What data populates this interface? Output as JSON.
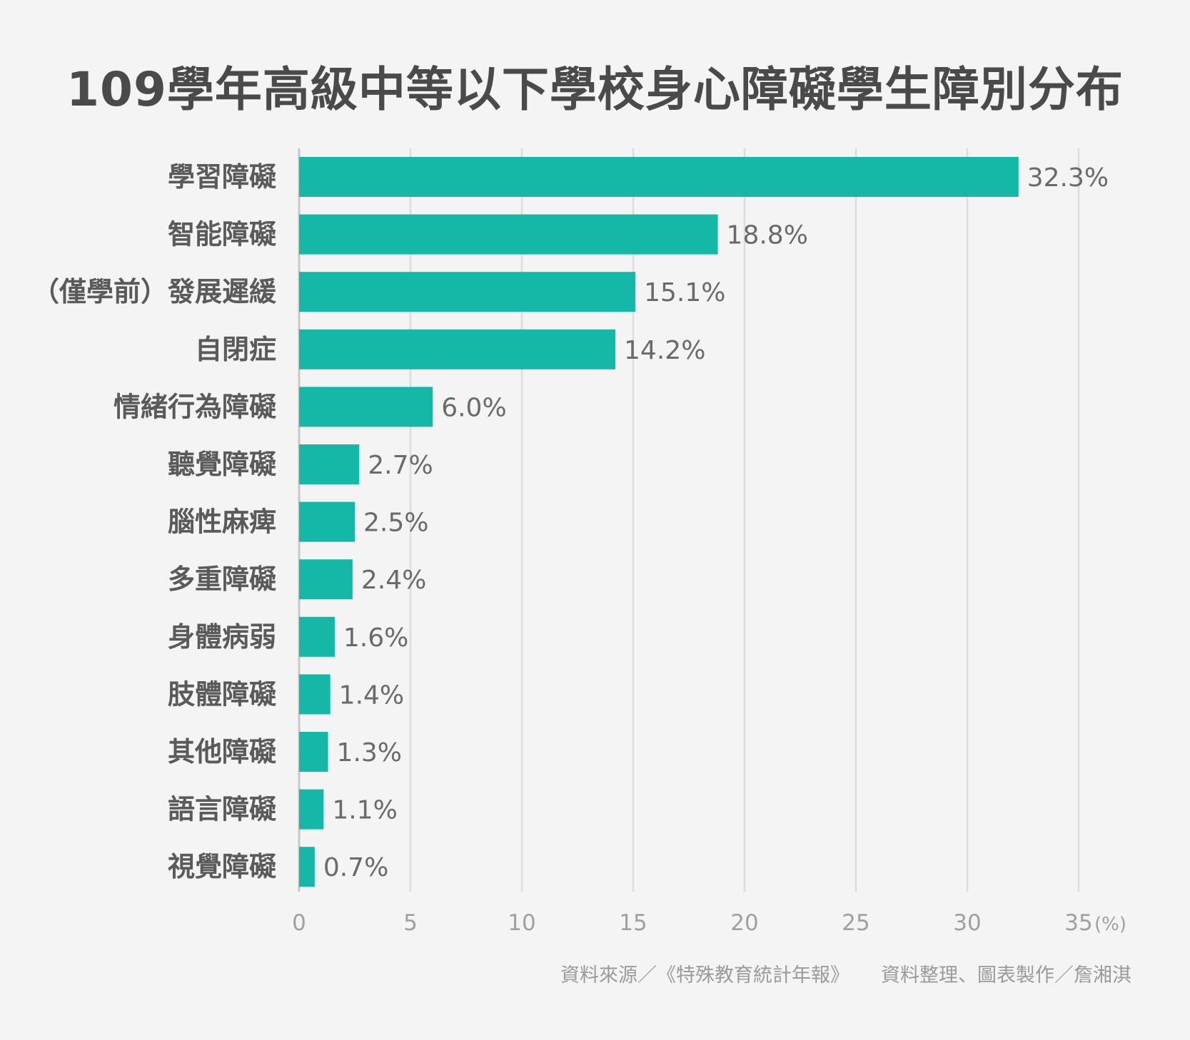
{
  "chart_data": {
    "type": "bar",
    "orientation": "horizontal",
    "title": "109學年高級中等以下學校身心障礙學生障別分布",
    "categories": [
      "學習障礙",
      "智能障礙",
      "（僅學前）發展遲緩",
      "自閉症",
      "情緒行為障礙",
      "聽覺障礙",
      "腦性麻痺",
      "多重障礙",
      "身體病弱",
      "肢體障礙",
      "其他障礙",
      "語言障礙",
      "視覺障礙"
    ],
    "values": [
      32.3,
      18.8,
      15.1,
      14.2,
      6.0,
      2.7,
      2.5,
      2.4,
      1.6,
      1.4,
      1.3,
      1.1,
      0.7
    ],
    "value_labels": [
      "32.3%",
      "18.8%",
      "15.1%",
      "14.2%",
      "6.0%",
      "2.7%",
      "2.5%",
      "2.4%",
      "1.6%",
      "1.4%",
      "1.3%",
      "1.1%",
      "0.7%"
    ],
    "xlim": [
      0,
      35
    ],
    "xticks": [
      "0",
      "5",
      "10",
      "15",
      "20",
      "25",
      "30",
      "35"
    ],
    "xunit": "(%)",
    "grid": true,
    "bar_color": "#15b8a6"
  },
  "footer": {
    "source": "資料來源／《特殊教育統計年報》",
    "credit": "資料整理、圖表製作／詹湘淇"
  }
}
